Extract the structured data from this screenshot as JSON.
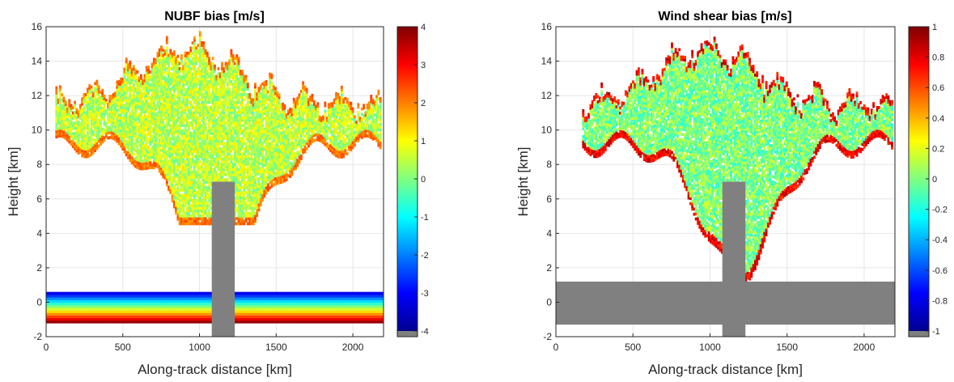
{
  "chart_data": [
    {
      "type": "heatmap",
      "title": "NUBF bias [m/s]",
      "xlabel": "Along-track distance [km]",
      "ylabel": "Height [km]",
      "xlim": [
        0,
        2200
      ],
      "ylim": [
        -2,
        16
      ],
      "x_ticks": [
        "0",
        "500",
        "1000",
        "1500",
        "2000"
      ],
      "y_ticks": [
        "-2",
        "0",
        "2",
        "4",
        "6",
        "8",
        "10",
        "12",
        "14",
        "16"
      ],
      "grid": true,
      "colormap": "jet",
      "colorbar_range": [
        -4,
        4
      ],
      "colorbar_ticks": [
        "4",
        "3",
        "2",
        "1",
        "0",
        "-1",
        "-2",
        "-3",
        "-4"
      ],
      "missing_color": "#808080",
      "features": [
        {
          "kind": "cloud_band",
          "x_range": [
            60,
            2180
          ],
          "height_range": [
            4.5,
            15.7
          ],
          "typical_bias": 0.5,
          "edge_bias": 2.5
        },
        {
          "kind": "surface_band",
          "height_range": [
            -1.2,
            0.6
          ],
          "bias_top": -3.8,
          "bias_bottom": 3.8
        },
        {
          "kind": "no_data_column",
          "x_range": [
            1080,
            1230
          ],
          "height_range": [
            -2,
            7
          ]
        }
      ]
    },
    {
      "type": "heatmap",
      "title": "Wind shear bias [m/s]",
      "xlabel": "Along-track distance [km]",
      "ylabel": "Height [km]",
      "xlim": [
        0,
        2200
      ],
      "ylim": [
        -2,
        16
      ],
      "x_ticks": [
        "0",
        "500",
        "1000",
        "1500",
        "2000"
      ],
      "y_ticks": [
        "-2",
        "0",
        "2",
        "4",
        "6",
        "8",
        "10",
        "12",
        "14",
        "16"
      ],
      "grid": true,
      "colormap": "jet",
      "colorbar_range": [
        -1,
        1
      ],
      "colorbar_ticks": [
        "1",
        "0.8",
        "0.6",
        "0.4",
        "0.2",
        "0",
        "-0.2",
        "-0.4",
        "-0.6",
        "-0.8",
        "-1"
      ],
      "missing_color": "#808080",
      "features": [
        {
          "kind": "cloud_band",
          "x_range": [
            170,
            2180
          ],
          "height_range": [
            1,
            15.5
          ],
          "typical_bias": 0.0,
          "edge_bias": 0.9
        },
        {
          "kind": "no_data_band",
          "height_range": [
            -1.3,
            1.2
          ]
        },
        {
          "kind": "no_data_column",
          "x_range": [
            1080,
            1230
          ],
          "height_range": [
            -2,
            7
          ]
        }
      ]
    }
  ]
}
